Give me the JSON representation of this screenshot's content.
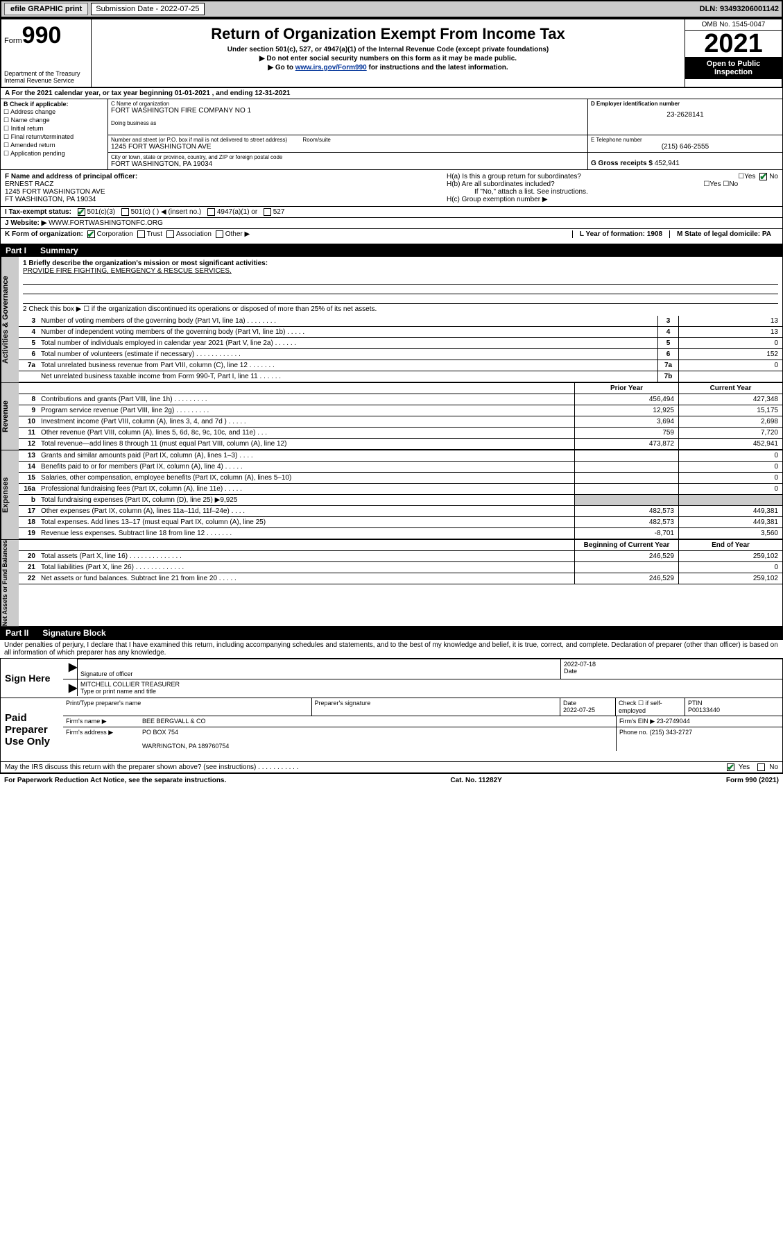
{
  "topbar": {
    "efile": "efile GRAPHIC print",
    "submission_label": "Submission Date - 2022-07-25",
    "dln": "DLN: 93493206001142"
  },
  "header": {
    "form_prefix": "Form",
    "form_number": "990",
    "dept": "Department of the Treasury\nInternal Revenue Service",
    "title": "Return of Organization Exempt From Income Tax",
    "sub1": "Under section 501(c), 527, or 4947(a)(1) of the Internal Revenue Code (except private foundations)",
    "sub2": "▶ Do not enter social security numbers on this form as it may be made public.",
    "sub3_pre": "▶ Go to ",
    "sub3_link": "www.irs.gov/Form990",
    "sub3_post": " for instructions and the latest information.",
    "omb": "OMB No. 1545-0047",
    "year": "2021",
    "inspect": "Open to Public Inspection"
  },
  "rowA": "A For the 2021 calendar year, or tax year beginning 01-01-2021   , and ending 12-31-2021",
  "boxB": {
    "title": "B Check if applicable:",
    "items": [
      "Address change",
      "Name change",
      "Initial return",
      "Final return/terminated",
      "Amended return",
      "Application pending"
    ]
  },
  "boxC": {
    "name_lbl": "C Name of organization",
    "name": "FORT WASHINGTON FIRE COMPANY NO 1",
    "dba_lbl": "Doing business as",
    "addr_lbl": "Number and street (or P.O. box if mail is not delivered to street address)",
    "room_lbl": "Room/suite",
    "addr": "1245 FORT WASHINGTON AVE",
    "city_lbl": "City or town, state or province, country, and ZIP or foreign postal code",
    "city": "FORT WASHINGTON, PA  19034"
  },
  "boxD": {
    "lbl": "D Employer identification number",
    "val": "23-2628141"
  },
  "boxE": {
    "lbl": "E Telephone number",
    "val": "(215) 646-2555"
  },
  "boxG": {
    "lbl": "G Gross receipts $",
    "val": "452,941"
  },
  "boxF": {
    "lbl": "F Name and address of principal officer:",
    "name": "ERNEST RACZ",
    "addr1": "1245 FORT WASHINGTON AVE",
    "addr2": "FT WASHINGTON, PA  19034"
  },
  "boxH": {
    "ha": "H(a)  Is this a group return for subordinates?",
    "hb": "H(b)  Are all subordinates included?",
    "hb_note": "If \"No,\" attach a list. See instructions.",
    "hc": "H(c)  Group exemption number ▶"
  },
  "rowI": {
    "lbl": "I   Tax-exempt status:",
    "opts": [
      "501(c)(3)",
      "501(c) (  ) ◀ (insert no.)",
      "4947(a)(1) or",
      "527"
    ]
  },
  "rowJ": {
    "lbl": "J   Website: ▶",
    "val": "WWW.FORTWASHINGTONFC.ORG"
  },
  "rowK": {
    "lbl": "K Form of organization:",
    "opts": [
      "Corporation",
      "Trust",
      "Association",
      "Other ▶"
    ],
    "L": "L Year of formation: 1908",
    "M": "M State of legal domicile: PA"
  },
  "part1": {
    "num": "Part I",
    "title": "Summary"
  },
  "mission": {
    "l1": "1   Briefly describe the organization's mission or most significant activities:",
    "text": "PROVIDE FIRE FIGHTING, EMERGENCY & RESCUE SERVICES.",
    "l2": "2   Check this box ▶ ☐  if the organization discontinued its operations or disposed of more than 25% of its net assets."
  },
  "gov_rows": [
    {
      "n": "3",
      "t": "Number of voting members of the governing body (Part VI, line 1a)  .  .  .  .  .  .  .  .",
      "c": "3",
      "v": "13"
    },
    {
      "n": "4",
      "t": "Number of independent voting members of the governing body (Part VI, line 1b)  .  .  .  .  .",
      "c": "4",
      "v": "13"
    },
    {
      "n": "5",
      "t": "Total number of individuals employed in calendar year 2021 (Part V, line 2a)  .  .  .  .  .  .",
      "c": "5",
      "v": "0"
    },
    {
      "n": "6",
      "t": "Total number of volunteers (estimate if necessary)  .  .  .  .  .  .  .  .  .  .  .  .",
      "c": "6",
      "v": "152"
    },
    {
      "n": "7a",
      "t": "Total unrelated business revenue from Part VIII, column (C), line 12  .  .  .  .  .  .  .",
      "c": "7a",
      "v": "0"
    },
    {
      "n": "",
      "t": "Net unrelated business taxable income from Form 990-T, Part I, line 11  .  .  .  .  .  .",
      "c": "7b",
      "v": ""
    }
  ],
  "rev_hdr": {
    "c1": "Prior Year",
    "c2": "Current Year"
  },
  "rev_rows": [
    {
      "n": "8",
      "t": "Contributions and grants (Part VIII, line 1h)  .  .  .  .  .  .  .  .  .",
      "c1": "456,494",
      "c2": "427,348"
    },
    {
      "n": "9",
      "t": "Program service revenue (Part VIII, line 2g)  .  .  .  .  .  .  .  .  .",
      "c1": "12,925",
      "c2": "15,175"
    },
    {
      "n": "10",
      "t": "Investment income (Part VIII, column (A), lines 3, 4, and 7d )  .  .  .  .  .",
      "c1": "3,694",
      "c2": "2,698"
    },
    {
      "n": "11",
      "t": "Other revenue (Part VIII, column (A), lines 5, 6d, 8c, 9c, 10c, and 11e)  .  .  .",
      "c1": "759",
      "c2": "7,720"
    },
    {
      "n": "12",
      "t": "Total revenue—add lines 8 through 11 (must equal Part VIII, column (A), line 12)",
      "c1": "473,872",
      "c2": "452,941"
    }
  ],
  "exp_rows": [
    {
      "n": "13",
      "t": "Grants and similar amounts paid (Part IX, column (A), lines 1–3)  .  .  .  .",
      "c1": "",
      "c2": "0"
    },
    {
      "n": "14",
      "t": "Benefits paid to or for members (Part IX, column (A), line 4)  .  .  .  .  .",
      "c1": "",
      "c2": "0"
    },
    {
      "n": "15",
      "t": "Salaries, other compensation, employee benefits (Part IX, column (A), lines 5–10)",
      "c1": "",
      "c2": "0"
    },
    {
      "n": "16a",
      "t": "Professional fundraising fees (Part IX, column (A), line 11e)  .  .  .  .  .",
      "c1": "",
      "c2": "0"
    },
    {
      "n": "b",
      "t": "Total fundraising expenses (Part IX, column (D), line 25) ▶9,925",
      "c1": "shade",
      "c2": "shade"
    },
    {
      "n": "17",
      "t": "Other expenses (Part IX, column (A), lines 11a–11d, 11f–24e)  .  .  .  .",
      "c1": "482,573",
      "c2": "449,381"
    },
    {
      "n": "18",
      "t": "Total expenses. Add lines 13–17 (must equal Part IX, column (A), line 25)",
      "c1": "482,573",
      "c2": "449,381"
    },
    {
      "n": "19",
      "t": "Revenue less expenses. Subtract line 18 from line 12  .  .  .  .  .  .  .",
      "c1": "-8,701",
      "c2": "3,560"
    }
  ],
  "na_hdr": {
    "c1": "Beginning of Current Year",
    "c2": "End of Year"
  },
  "na_rows": [
    {
      "n": "20",
      "t": "Total assets (Part X, line 16)  .  .  .  .  .  .  .  .  .  .  .  .  .  .",
      "c1": "246,529",
      "c2": "259,102"
    },
    {
      "n": "21",
      "t": "Total liabilities (Part X, line 26)  .  .  .  .  .  .  .  .  .  .  .  .  .",
      "c1": "",
      "c2": "0"
    },
    {
      "n": "22",
      "t": "Net assets or fund balances. Subtract line 21 from line 20  .  .  .  .  .",
      "c1": "246,529",
      "c2": "259,102"
    }
  ],
  "part2": {
    "num": "Part II",
    "title": "Signature Block"
  },
  "sig_decl": "Under penalties of perjury, I declare that I have examined this return, including accompanying schedules and statements, and to the best of my knowledge and belief, it is true, correct, and complete. Declaration of preparer (other than officer) is based on all information of which preparer has any knowledge.",
  "sign": {
    "here": "Sign Here",
    "sig_lbl": "Signature of officer",
    "date": "2022-07-18",
    "date_lbl": "Date",
    "name": "MITCHELL COLLIER  TREASURER",
    "name_lbl": "Type or print name and title"
  },
  "prep": {
    "title": "Paid Preparer Use Only",
    "col1": "Print/Type preparer's name",
    "col2": "Preparer's signature",
    "col3_lbl": "Date",
    "col3": "2022-07-25",
    "col4": "Check ☐ if self-employed",
    "col5_lbl": "PTIN",
    "col5": "P00133440",
    "firm_lbl": "Firm's name    ▶",
    "firm": "BEE BERGVALL & CO",
    "ein_lbl": "Firm's EIN ▶",
    "ein": "23-2749044",
    "addr_lbl": "Firm's address ▶",
    "addr1": "PO BOX 754",
    "addr2": "WARRINGTON, PA  189760754",
    "phone_lbl": "Phone no.",
    "phone": "(215) 343-2727"
  },
  "discuss": "May the IRS discuss this return with the preparer shown above? (see instructions)  .  .  .  .  .  .  .  .  .  .  .",
  "footer": {
    "left": "For Paperwork Reduction Act Notice, see the separate instructions.",
    "mid": "Cat. No. 11282Y",
    "right": "Form 990 (2021)"
  },
  "vtabs": {
    "gov": "Activities & Governance",
    "rev": "Revenue",
    "exp": "Expenses",
    "na": "Net Assets or Fund Balances"
  }
}
